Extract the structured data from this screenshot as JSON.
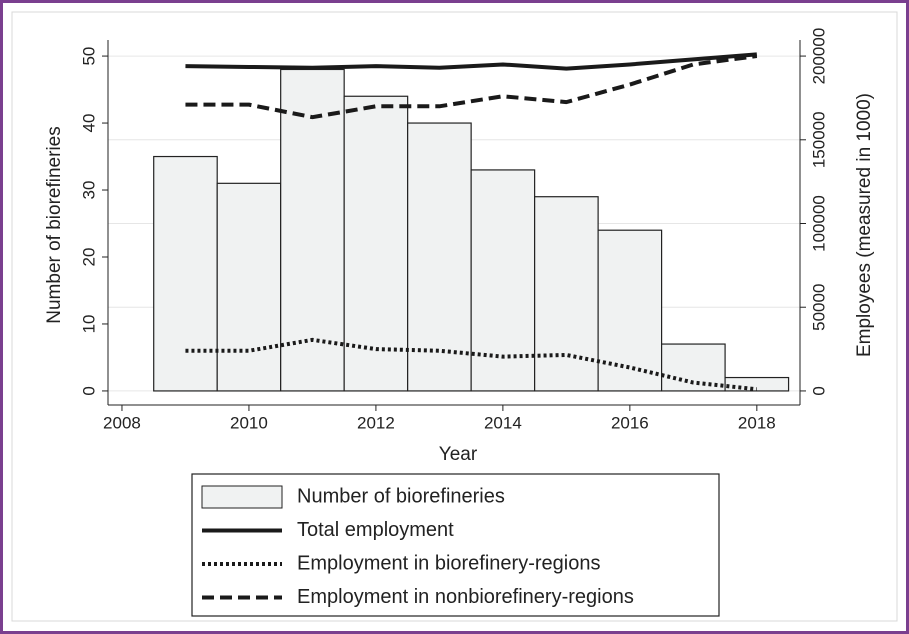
{
  "chart_data": {
    "type": "bar",
    "xlabel": "Year",
    "ylabel": "Number of biorefineries",
    "y2label": "Employees (measured in 1000)",
    "x": [
      2009,
      2010,
      2011,
      2012,
      2013,
      2014,
      2015,
      2016,
      2017,
      2018
    ],
    "xlim": [
      2007.78,
      2018.68
    ],
    "xticks": [
      2008,
      2010,
      2012,
      2014,
      2016,
      2018
    ],
    "ylim": [
      -2.1,
      52.4
    ],
    "yticks": [
      0,
      10,
      20,
      30,
      40,
      50
    ],
    "y2lim": [
      -8400,
      209600
    ],
    "y2ticks": [
      0,
      50000,
      100000,
      150000,
      200000
    ],
    "grid": true,
    "series": [
      {
        "name": "Number of biorefineries",
        "type": "bar",
        "color": "#f0f2f2",
        "edgecolor": "#222222",
        "values": [
          35,
          31,
          48,
          44,
          40,
          33,
          29,
          24,
          7,
          2
        ]
      },
      {
        "name": "Total employment",
        "type": "line",
        "axis": "y2",
        "color": "#1a1a1a",
        "linestyle": "solid",
        "values": [
          194000,
          193500,
          193000,
          194000,
          193000,
          195000,
          192500,
          195000,
          198000,
          201000
        ]
      },
      {
        "name": "Employment in biorefinery-regions",
        "type": "line",
        "axis": "y2",
        "color": "#1a1a1a",
        "linestyle": "dotted",
        "values": [
          24000,
          24000,
          30500,
          25000,
          24000,
          20500,
          21500,
          14000,
          5000,
          1000
        ]
      },
      {
        "name": "Employment in nonbiorefinery-regions",
        "type": "line",
        "axis": "y2",
        "color": "#1a1a1a",
        "linestyle": "dashed",
        "values": [
          171000,
          171000,
          163500,
          170000,
          170000,
          176000,
          172500,
          183000,
          195000,
          200000
        ]
      }
    ]
  }
}
